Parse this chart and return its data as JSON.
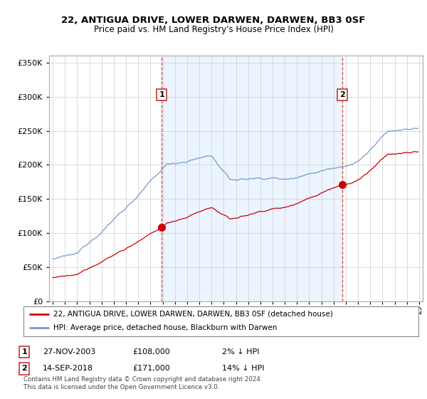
{
  "title1": "22, ANTIGUA DRIVE, LOWER DARWEN, DARWEN, BB3 0SF",
  "title2": "Price paid vs. HM Land Registry's House Price Index (HPI)",
  "legend1": "22, ANTIGUA DRIVE, LOWER DARWEN, DARWEN, BB3 0SF (detached house)",
  "legend2": "HPI: Average price, detached house, Blackburn with Darwen",
  "transaction1_date": "27-NOV-2003",
  "transaction1_price": "£108,000",
  "transaction1_hpi": "2% ↓ HPI",
  "transaction2_date": "14-SEP-2018",
  "transaction2_price": "£171,000",
  "transaction2_hpi": "14% ↓ HPI",
  "footnote": "Contains HM Land Registry data © Crown copyright and database right 2024.\nThis data is licensed under the Open Government Licence v3.0.",
  "transaction1_year": 2003.917,
  "transaction1_value": 108000,
  "transaction2_year": 2018.708,
  "transaction2_value": 171000,
  "ylim": [
    0,
    360000
  ],
  "yticks": [
    0,
    50000,
    100000,
    150000,
    200000,
    250000,
    300000,
    350000
  ],
  "line_color_red": "#cc0000",
  "line_color_blue": "#7799cc",
  "bg_light_blue": "#ddeeff",
  "vline_color": "#cc3333"
}
